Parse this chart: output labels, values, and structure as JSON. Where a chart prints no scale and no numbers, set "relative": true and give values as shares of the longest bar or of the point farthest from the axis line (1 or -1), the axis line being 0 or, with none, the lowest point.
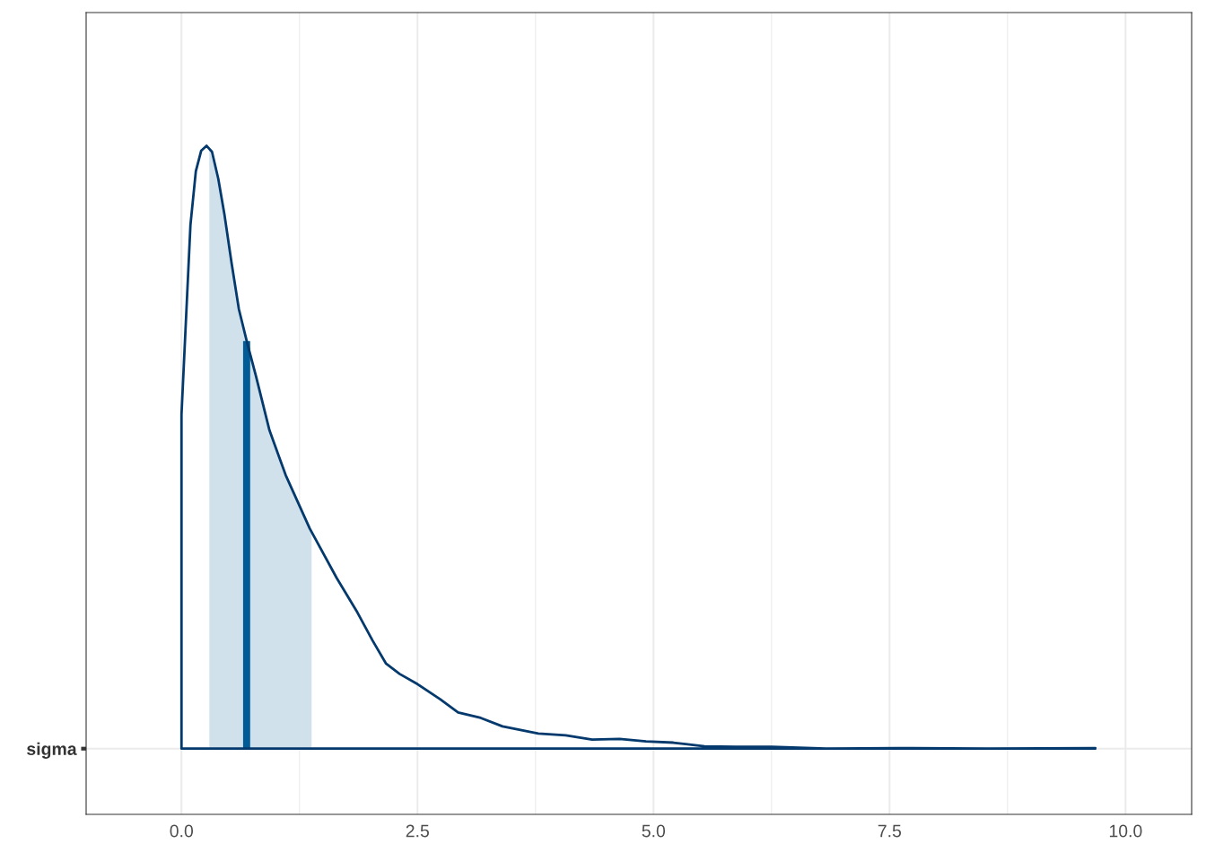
{
  "chart_data": {
    "type": "line",
    "relative": true,
    "y_categories": [
      "sigma"
    ],
    "xlim": [
      -1.01,
      10.7
    ],
    "xticks": [
      {
        "value": 0,
        "label": "0.0"
      },
      {
        "value": 2.5,
        "label": "2.5"
      },
      {
        "value": 5,
        "label": "5.0"
      },
      {
        "value": 7.5,
        "label": "7.5"
      },
      {
        "value": 10,
        "label": "10.0"
      }
    ],
    "grid": true,
    "series": [
      {
        "type": "area",
        "color": "#d1e1ec",
        "x": [
          0.295,
          0.39,
          0.456,
          0.532,
          0.608,
          0.694,
          0.789,
          0.932,
          1.103,
          1.359,
          1.378
        ],
        "values": [
          0.996,
          0.945,
          0.885,
          0.804,
          0.729,
          0.674,
          0.618,
          0.528,
          0.454,
          0.365,
          0.358
        ]
      },
      {
        "type": "bar",
        "color": "#005b96",
        "x": [
          0.69
        ],
        "values": [
          0.676
        ]
      },
      {
        "color": "#03396c",
        "x": [
          9.68,
          0,
          0,
          0.095,
          0.152,
          0.209,
          0.266,
          0.323,
          0.39,
          0.456,
          0.532,
          0.608,
          0.694,
          0.789,
          0.932,
          1.103,
          1.359,
          1.644,
          1.863,
          2.025,
          2.167,
          2.31,
          2.5,
          2.74,
          2.93,
          3.17,
          3.4,
          3.78,
          4.07,
          4.35,
          4.64,
          4.92,
          5.21,
          5.54,
          5.87,
          6.25,
          6.83,
          7.59,
          8.54,
          9.68
        ],
        "values": [
          0,
          0,
          0.554,
          0.869,
          0.958,
          0.992,
          1.0,
          0.99,
          0.945,
          0.885,
          0.804,
          0.729,
          0.674,
          0.618,
          0.528,
          0.454,
          0.365,
          0.283,
          0.226,
          0.179,
          0.141,
          0.124,
          0.107,
          0.082,
          0.06,
          0.051,
          0.037,
          0.025,
          0.022,
          0.015,
          0.016,
          0.012,
          0.01,
          0.004,
          0.003,
          0.003,
          0.0,
          0.001,
          0.0,
          0.001
        ]
      }
    ]
  }
}
